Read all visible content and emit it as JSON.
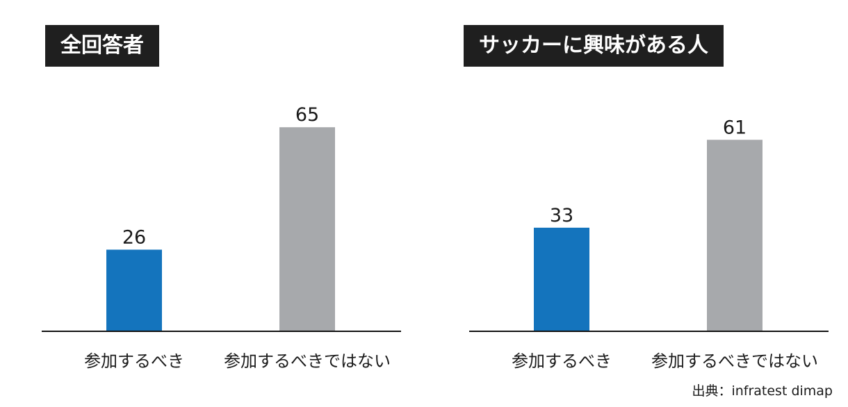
{
  "chart_data": [
    {
      "type": "bar",
      "title": "全回答者",
      "categories": [
        "参加するべき",
        "参加するべきではない"
      ],
      "values": [
        26,
        65
      ],
      "data_labels": [
        "26",
        "65"
      ],
      "colors": [
        "#1474bd",
        "#a7a9ac"
      ],
      "ylim": [
        0,
        100
      ],
      "grid": false
    },
    {
      "type": "bar",
      "title": "サッカーに興味がある人",
      "categories": [
        "参加するべき",
        "参加するべきではない"
      ],
      "values": [
        33,
        61
      ],
      "data_labels": [
        "33",
        "61"
      ],
      "colors": [
        "#1474bd",
        "#a7a9ac"
      ],
      "ylim": [
        0,
        100
      ],
      "grid": false
    }
  ],
  "source": "出典：infratest dimap"
}
